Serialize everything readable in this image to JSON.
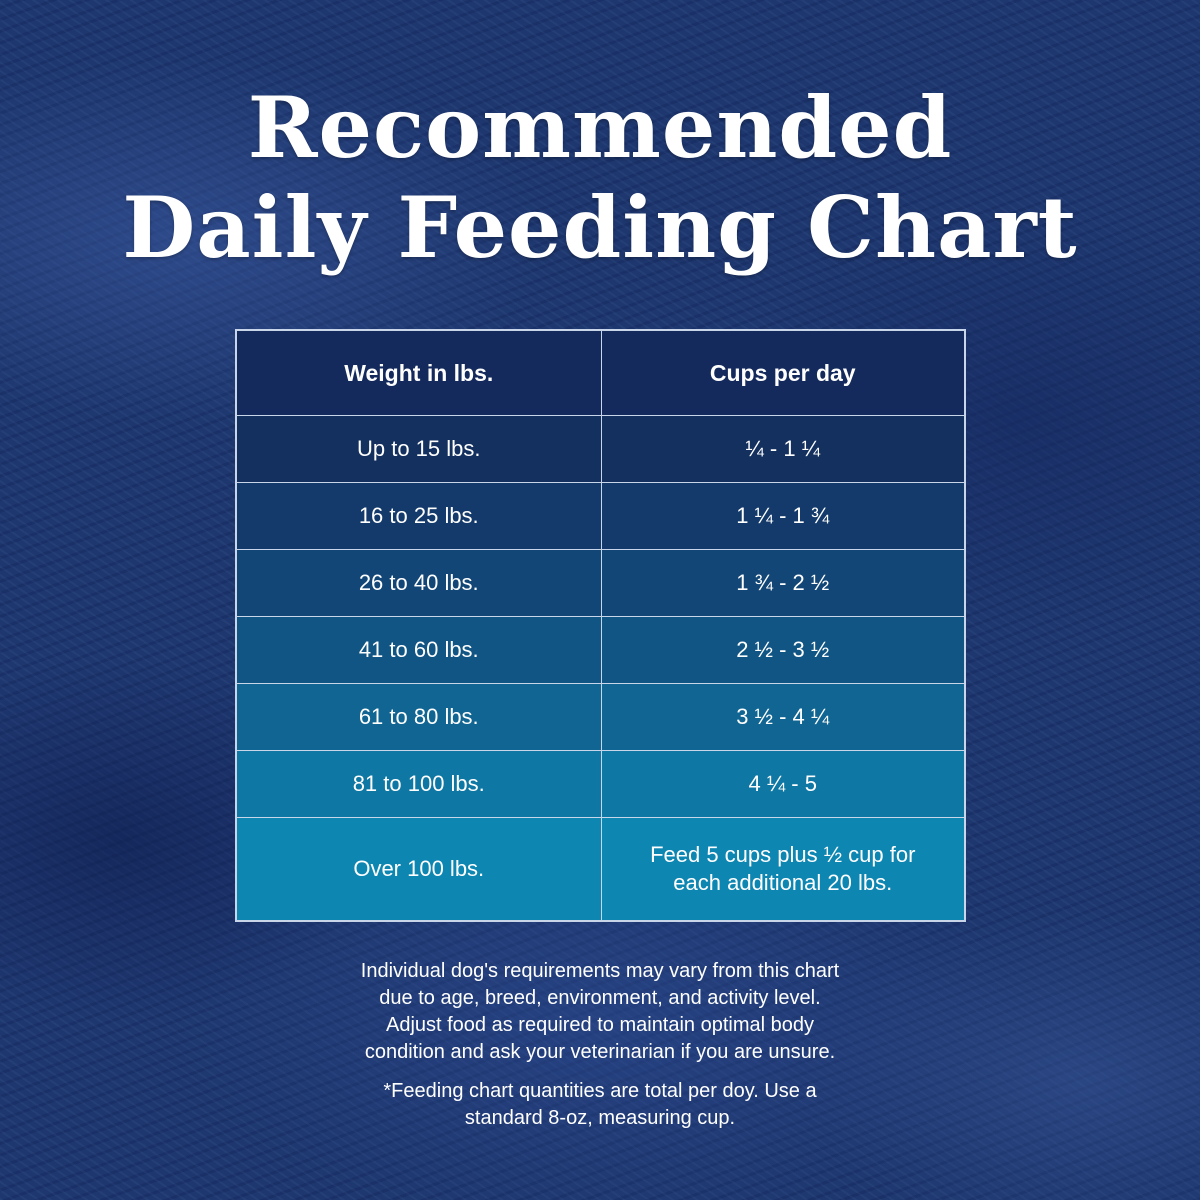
{
  "title": {
    "line1": "Recommended",
    "line2": "Daily Feeding Chart"
  },
  "table": {
    "headers": {
      "weight": "Weight in lbs.",
      "cups": "Cups per day"
    },
    "rows": [
      {
        "weight": "Up to 15 lbs.",
        "cups": "¼ - 1 ¼",
        "bg": "#14305f"
      },
      {
        "weight": "16 to 25 lbs.",
        "cups": "1 ¼  - 1 ¾",
        "bg": "#133a6a"
      },
      {
        "weight": "26 to 40 lbs.",
        "cups": "1 ¾  - 2 ½",
        "bg": "#124676"
      },
      {
        "weight": "41 to 60 lbs.",
        "cups": "2 ½  - 3 ½",
        "bg": "#115584"
      },
      {
        "weight": "61 to 80 lbs.",
        "cups": "3 ½  - 4 ¼",
        "bg": "#106592"
      },
      {
        "weight": "81 to 100 lbs.",
        "cups": "4 ¼  - 5",
        "bg": "#0f77a3"
      },
      {
        "weight": "Over 100 lbs.",
        "cups_line1": "Feed 5 cups plus ½ cup for",
        "cups_line2": "each additional 20 lbs.",
        "bg": "#0e86b2"
      }
    ]
  },
  "footer": {
    "main": [
      "Individual dog's requirements may vary from this chart",
      "due to age, breed, environment, and activity level.",
      "Adjust food as required to maintain optimal body",
      "condition and ask your veterinarian if you are unsure."
    ],
    "note": [
      "*Feeding chart quantities are total per doy. Use a",
      "standard 8-oz, measuring cup."
    ]
  }
}
